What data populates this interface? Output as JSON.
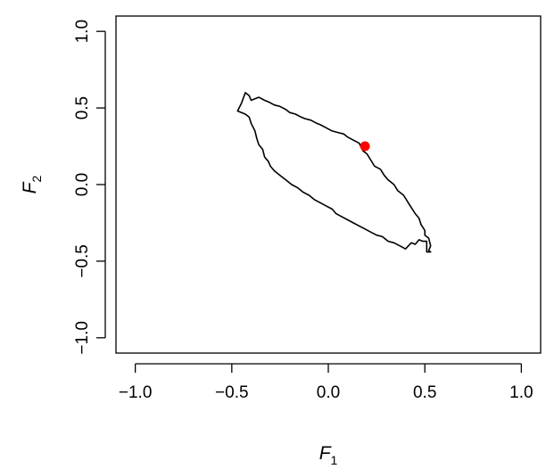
{
  "chart_data": {
    "type": "scatter",
    "title": "",
    "xlabel": {
      "main": "F",
      "sub": "1"
    },
    "ylabel": {
      "main": "F",
      "sub": "2"
    },
    "xlim": [
      -1.1,
      1.1
    ],
    "ylim": [
      -1.1,
      1.1
    ],
    "x_ticks": [
      -1.0,
      -0.5,
      0.0,
      0.5,
      1.0
    ],
    "x_tick_labels": [
      "−1.0",
      "−0.5",
      "0.0",
      "0.5",
      "1.0"
    ],
    "y_ticks": [
      -1.0,
      -0.5,
      0.0,
      0.5,
      1.0
    ],
    "y_tick_labels": [
      "−1.0",
      "−0.5",
      "0.0",
      "0.5",
      "1.0"
    ],
    "grid": false,
    "series": [
      {
        "type": "line",
        "closed": true,
        "color": "#000000",
        "points": [
          [
            -0.43,
            0.6
          ],
          [
            -0.41,
            0.58
          ],
          [
            -0.4,
            0.55
          ],
          [
            -0.38,
            0.56
          ],
          [
            -0.36,
            0.57
          ],
          [
            -0.33,
            0.55
          ],
          [
            -0.31,
            0.54
          ],
          [
            -0.28,
            0.52
          ],
          [
            -0.25,
            0.51
          ],
          [
            -0.22,
            0.49
          ],
          [
            -0.2,
            0.47
          ],
          [
            -0.17,
            0.46
          ],
          [
            -0.14,
            0.44
          ],
          [
            -0.12,
            0.43
          ],
          [
            -0.09,
            0.42
          ],
          [
            -0.06,
            0.4
          ],
          [
            -0.04,
            0.39
          ],
          [
            -0.01,
            0.37
          ],
          [
            0.02,
            0.35
          ],
          [
            0.05,
            0.34
          ],
          [
            0.08,
            0.33
          ],
          [
            0.1,
            0.31
          ],
          [
            0.13,
            0.29
          ],
          [
            0.16,
            0.27
          ],
          [
            0.18,
            0.22
          ],
          [
            0.2,
            0.2
          ],
          [
            0.22,
            0.16
          ],
          [
            0.24,
            0.12
          ],
          [
            0.27,
            0.1
          ],
          [
            0.29,
            0.06
          ],
          [
            0.31,
            0.03
          ],
          [
            0.34,
            0.0
          ],
          [
            0.36,
            -0.04
          ],
          [
            0.39,
            -0.07
          ],
          [
            0.41,
            -0.11
          ],
          [
            0.43,
            -0.15
          ],
          [
            0.45,
            -0.19
          ],
          [
            0.47,
            -0.22
          ],
          [
            0.48,
            -0.26
          ],
          [
            0.5,
            -0.3
          ],
          [
            0.5,
            -0.33
          ],
          [
            0.52,
            -0.35
          ],
          [
            0.53,
            -0.4
          ],
          [
            0.52,
            -0.43
          ],
          [
            0.53,
            -0.44
          ],
          [
            0.51,
            -0.44
          ],
          [
            0.51,
            -0.37
          ],
          [
            0.49,
            -0.37
          ],
          [
            0.47,
            -0.36
          ],
          [
            0.45,
            -0.39
          ],
          [
            0.43,
            -0.38
          ],
          [
            0.4,
            -0.42
          ],
          [
            0.37,
            -0.4
          ],
          [
            0.34,
            -0.38
          ],
          [
            0.31,
            -0.37
          ],
          [
            0.28,
            -0.34
          ],
          [
            0.25,
            -0.33
          ],
          [
            0.22,
            -0.31
          ],
          [
            0.19,
            -0.29
          ],
          [
            0.16,
            -0.27
          ],
          [
            0.13,
            -0.25
          ],
          [
            0.1,
            -0.23
          ],
          [
            0.07,
            -0.21
          ],
          [
            0.04,
            -0.19
          ],
          [
            0.02,
            -0.16
          ],
          [
            -0.01,
            -0.14
          ],
          [
            -0.04,
            -0.12
          ],
          [
            -0.07,
            -0.1
          ],
          [
            -0.1,
            -0.07
          ],
          [
            -0.13,
            -0.05
          ],
          [
            -0.16,
            -0.02
          ],
          [
            -0.19,
            0.0
          ],
          [
            -0.22,
            0.03
          ],
          [
            -0.25,
            0.06
          ],
          [
            -0.28,
            0.09
          ],
          [
            -0.3,
            0.12
          ],
          [
            -0.31,
            0.15
          ],
          [
            -0.33,
            0.18
          ],
          [
            -0.34,
            0.23
          ],
          [
            -0.36,
            0.26
          ],
          [
            -0.37,
            0.3
          ],
          [
            -0.38,
            0.35
          ],
          [
            -0.4,
            0.4
          ],
          [
            -0.41,
            0.44
          ],
          [
            -0.43,
            0.46
          ],
          [
            -0.47,
            0.48
          ],
          [
            -0.45,
            0.53
          ],
          [
            -0.43,
            0.6
          ]
        ]
      },
      {
        "type": "point",
        "color": "#ff0000",
        "points": [
          [
            0.19,
            0.25
          ]
        ]
      }
    ]
  }
}
